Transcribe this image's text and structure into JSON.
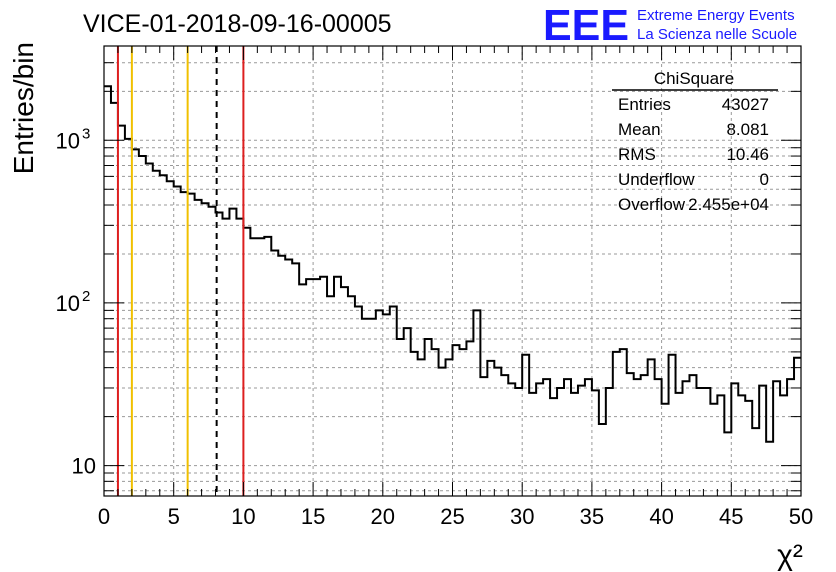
{
  "title": "VICE-01-2018-09-16-00005",
  "logo": {
    "mark": "EEE",
    "line1": "Extreme Energy Events",
    "line2": "La Scienza nelle Scuole",
    "color": "#1a1aff"
  },
  "stats_box": {
    "name": "ChiSquare",
    "rows": [
      {
        "label": "Entries",
        "value": "43027"
      },
      {
        "label": "Mean",
        "value": "8.081"
      },
      {
        "label": "RMS",
        "value": "10.46"
      },
      {
        "label": "Underflow",
        "value": "0"
      },
      {
        "label": "Overflow",
        "value": "2.455e+04"
      }
    ]
  },
  "chart_data": {
    "type": "histogram",
    "title": "VICE-01-2018-09-16-00005",
    "xlabel": "χ²",
    "ylabel": "Entries/bin",
    "xlim": [
      0,
      50
    ],
    "ylim": [
      6.5,
      3800
    ],
    "yscale": "log",
    "grid": true,
    "bin_width": 0.5,
    "x_ticks": [
      "0",
      "5",
      "10",
      "15",
      "20",
      "25",
      "30",
      "35",
      "40",
      "45",
      "50"
    ],
    "y_ticks": [
      {
        "value": 10,
        "label": "10"
      },
      {
        "value": 100,
        "label": "10",
        "exp": "2"
      },
      {
        "value": 1000,
        "label": "10",
        "exp": "3"
      }
    ],
    "values": [
      2150,
      1700,
      1230,
      1020,
      880,
      800,
      720,
      650,
      610,
      560,
      520,
      480,
      470,
      430,
      410,
      390,
      360,
      330,
      380,
      330,
      290,
      250,
      250,
      255,
      210,
      195,
      185,
      175,
      130,
      140,
      140,
      145,
      110,
      145,
      125,
      110,
      95,
      80,
      80,
      90,
      85,
      95,
      60,
      70,
      50,
      45,
      60,
      52,
      40,
      45,
      55,
      52,
      58,
      90,
      35,
      44,
      40,
      36,
      32,
      30,
      48,
      28,
      32,
      34,
      26,
      30,
      34,
      28,
      31,
      34,
      29,
      18,
      30,
      50,
      52,
      37,
      34,
      36,
      45,
      34,
      24,
      48,
      28,
      33,
      36,
      30,
      30,
      24,
      27,
      16,
      32,
      27,
      25,
      17,
      31,
      14,
      33,
      27,
      34,
      46
    ],
    "vertical_lines": [
      {
        "x": 1,
        "color": "#dd1f1f",
        "style": "solid"
      },
      {
        "x": 2,
        "color": "#f0c000",
        "style": "solid"
      },
      {
        "x": 6,
        "color": "#f0c000",
        "style": "solid"
      },
      {
        "x": 8.081,
        "color": "#000000",
        "style": "dashed"
      },
      {
        "x": 10,
        "color": "#dd1f1f",
        "style": "solid"
      }
    ]
  }
}
